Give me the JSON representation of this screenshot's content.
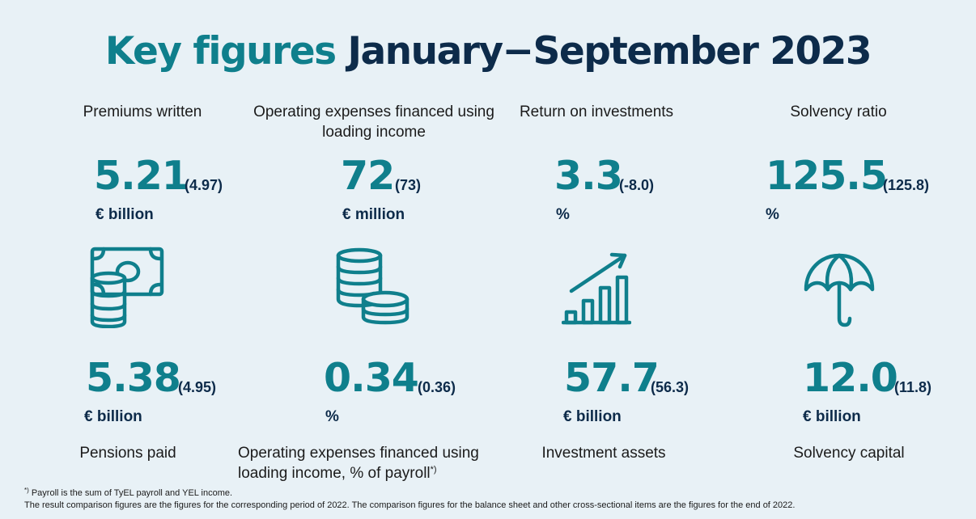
{
  "title": {
    "part1": "Key figures",
    "part2": "January−September 2023"
  },
  "top_metrics": [
    {
      "label": "Premiums written",
      "value": "5.21",
      "comparison": "(4.97)",
      "unit": "€ billion"
    },
    {
      "label": "Operating expenses financed using loading income",
      "value": "72",
      "comparison": "(73)",
      "unit": "€ million"
    },
    {
      "label": "Return on investments",
      "value": "3.3",
      "comparison": "(-8.0)",
      "unit": "%"
    },
    {
      "label": "Solvency ratio",
      "value": "125.5",
      "comparison": "(125.8)",
      "unit": "%"
    }
  ],
  "bottom_metrics": [
    {
      "label": "Pensions paid",
      "value": "5.38",
      "comparison": "(4.95)",
      "unit": "€ billion"
    },
    {
      "label_line1": "Operating expenses financed using",
      "label_line2": "loading income, % of payroll",
      "label_marker": "*)",
      "value": "0.34",
      "comparison": "(0.36)",
      "unit": "%"
    },
    {
      "label": "Investment assets",
      "value": "57.7",
      "comparison": "(56.3)",
      "unit": "€ billion"
    },
    {
      "label": "Solvency capital",
      "value": "12.0",
      "comparison": "(11.8)",
      "unit": "€ billion"
    }
  ],
  "icons": [
    "money-icon",
    "coin-stacks-icon",
    "growth-chart-icon",
    "umbrella-icon"
  ],
  "footnotes": {
    "marker": "*)",
    "line1": " Payroll is the sum of TyEL payroll and YEL income.",
    "line2": "The result comparison figures are the figures for the corresponding period of 2022. The comparison figures for the balance sheet and other cross-sectional items are the figures for the end of 2022."
  },
  "colors": {
    "background": "#e8f1f6",
    "teal": "#0f7f8c",
    "navy": "#0d2b4a",
    "text": "#1b1b1b"
  }
}
